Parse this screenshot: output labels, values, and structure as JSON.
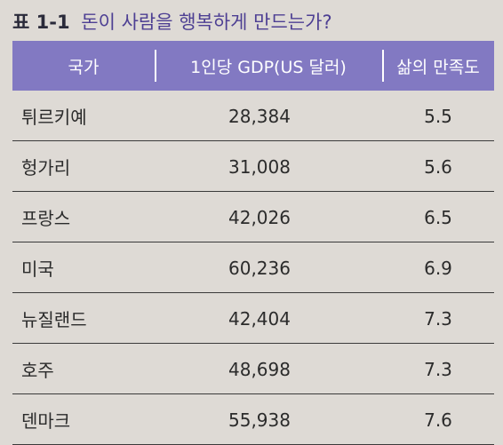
{
  "caption": {
    "label": "표 1-1",
    "title": "돈이 사람을 행복하게 만드는가?"
  },
  "table": {
    "headers": [
      "국가",
      "1인당 GDP(US 달러)",
      "삶의 만족도"
    ],
    "rows": [
      {
        "country": "튀르키예",
        "gdp": "28,384",
        "satisfaction": "5.5"
      },
      {
        "country": "헝가리",
        "gdp": "31,008",
        "satisfaction": "5.6"
      },
      {
        "country": "프랑스",
        "gdp": "42,026",
        "satisfaction": "6.5"
      },
      {
        "country": "미국",
        "gdp": "60,236",
        "satisfaction": "6.9"
      },
      {
        "country": "뉴질랜드",
        "gdp": "42,404",
        "satisfaction": "7.3"
      },
      {
        "country": "호주",
        "gdp": "48,698",
        "satisfaction": "7.3"
      },
      {
        "country": "덴마크",
        "gdp": "55,938",
        "satisfaction": "7.6"
      }
    ]
  },
  "colors": {
    "header_bg": "#8279c2",
    "title_text": "#4d3f93",
    "page_bg": "#dedad5"
  }
}
